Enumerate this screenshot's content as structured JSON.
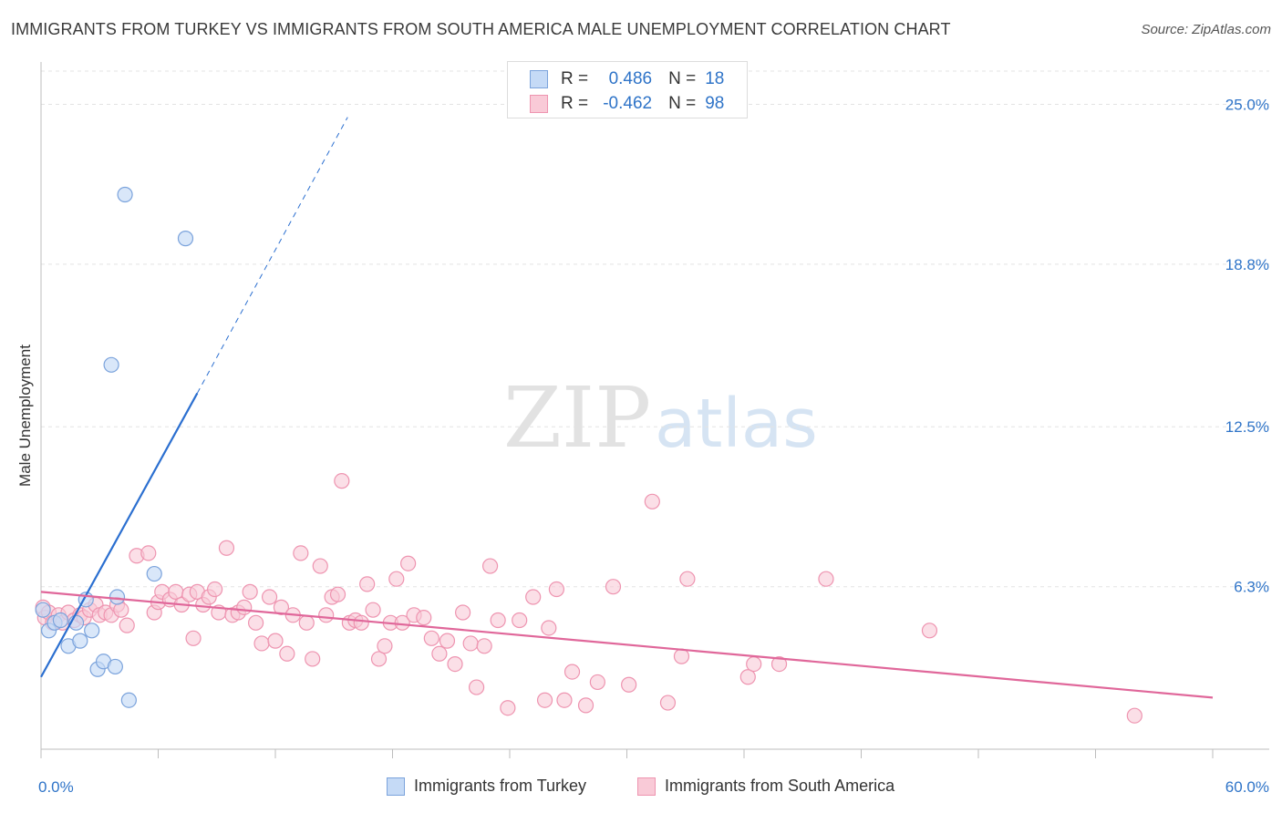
{
  "title": "IMMIGRANTS FROM TURKEY VS IMMIGRANTS FROM SOUTH AMERICA MALE UNEMPLOYMENT CORRELATION CHART",
  "source": "Source: ZipAtlas.com",
  "watermark": {
    "zip": "ZIP",
    "atlas": "atlas"
  },
  "legend": {
    "r_label": "R =",
    "n_label": "N =",
    "rows": [
      {
        "r": "0.486",
        "n": "18"
      },
      {
        "r": "-0.462",
        "n": "98"
      }
    ]
  },
  "colors": {
    "turkey_fill": "#c5daf6",
    "turkey_stroke": "#7ba3dc",
    "turkey_line": "#2b6fd0",
    "sa_fill": "#f9cad7",
    "sa_stroke": "#ee94b0",
    "sa_line": "#e0679a",
    "axis_label": "#2f74c8",
    "grid": "#e3e3e3"
  },
  "chart_data": {
    "type": "scatter",
    "title": "IMMIGRANTS FROM TURKEY VS IMMIGRANTS FROM SOUTH AMERICA MALE UNEMPLOYMENT CORRELATION CHART",
    "xlabel": "",
    "ylabel": "Male Unemployment",
    "xlim": [
      0,
      60
    ],
    "ylim": [
      0,
      26.5
    ],
    "x_tick_labels": [
      "0.0%",
      "60.0%"
    ],
    "y_ticks": [
      6.3,
      12.5,
      18.8,
      25.0
    ],
    "y_tick_labels": [
      "6.3%",
      "12.5%",
      "18.8%",
      "25.0%"
    ],
    "grid": "horizontal dashed",
    "legend_position": "top-center",
    "series": [
      {
        "name": "Immigrants from Turkey",
        "r": 0.486,
        "n": 18,
        "trend": {
          "x0": 0,
          "y0": 2.8,
          "x1": 8,
          "y1": 13.8,
          "dashed_to_x": 15.7,
          "dashed_to_y": 24.5
        },
        "points": [
          [
            0.1,
            5.4
          ],
          [
            0.4,
            4.6
          ],
          [
            0.7,
            4.9
          ],
          [
            1.0,
            5.0
          ],
          [
            1.4,
            4.0
          ],
          [
            1.8,
            4.9
          ],
          [
            2.0,
            4.2
          ],
          [
            2.3,
            5.8
          ],
          [
            2.6,
            4.6
          ],
          [
            2.9,
            3.1
          ],
          [
            3.2,
            3.4
          ],
          [
            3.8,
            3.2
          ],
          [
            3.9,
            5.9
          ],
          [
            4.5,
            1.9
          ],
          [
            4.3,
            21.5
          ],
          [
            5.8,
            6.8
          ],
          [
            7.4,
            19.8
          ],
          [
            3.6,
            14.9
          ]
        ]
      },
      {
        "name": "Immigrants from South America",
        "r": -0.462,
        "n": 98,
        "trend": {
          "x0": 0,
          "y0": 6.1,
          "x1": 60,
          "y1": 2.0
        },
        "points": [
          [
            0.1,
            5.5
          ],
          [
            0.2,
            5.1
          ],
          [
            0.4,
            5.3
          ],
          [
            0.6,
            4.9
          ],
          [
            0.9,
            5.2
          ],
          [
            1.1,
            4.9
          ],
          [
            1.4,
            5.3
          ],
          [
            1.7,
            5.0
          ],
          [
            2.0,
            5.2
          ],
          [
            2.2,
            5.1
          ],
          [
            2.5,
            5.4
          ],
          [
            2.8,
            5.6
          ],
          [
            3.0,
            5.2
          ],
          [
            3.3,
            5.3
          ],
          [
            3.6,
            5.2
          ],
          [
            3.9,
            5.6
          ],
          [
            4.1,
            5.4
          ],
          [
            4.4,
            4.8
          ],
          [
            4.9,
            7.5
          ],
          [
            5.5,
            7.6
          ],
          [
            5.8,
            5.3
          ],
          [
            6.0,
            5.7
          ],
          [
            6.2,
            6.1
          ],
          [
            6.6,
            5.8
          ],
          [
            6.9,
            6.1
          ],
          [
            7.2,
            5.6
          ],
          [
            7.6,
            6.0
          ],
          [
            7.8,
            4.3
          ],
          [
            8.0,
            6.1
          ],
          [
            8.3,
            5.6
          ],
          [
            8.6,
            5.9
          ],
          [
            8.9,
            6.2
          ],
          [
            9.1,
            5.3
          ],
          [
            9.5,
            7.8
          ],
          [
            9.8,
            5.2
          ],
          [
            10.1,
            5.3
          ],
          [
            10.4,
            5.5
          ],
          [
            10.7,
            6.1
          ],
          [
            11.0,
            4.9
          ],
          [
            11.3,
            4.1
          ],
          [
            11.7,
            5.9
          ],
          [
            12.0,
            4.2
          ],
          [
            12.3,
            5.5
          ],
          [
            12.6,
            3.7
          ],
          [
            12.9,
            5.2
          ],
          [
            13.3,
            7.6
          ],
          [
            13.6,
            4.9
          ],
          [
            13.9,
            3.5
          ],
          [
            14.3,
            7.1
          ],
          [
            14.6,
            5.2
          ],
          [
            14.9,
            5.9
          ],
          [
            15.2,
            6.0
          ],
          [
            15.4,
            10.4
          ],
          [
            15.8,
            4.9
          ],
          [
            16.1,
            5.0
          ],
          [
            16.4,
            4.9
          ],
          [
            16.7,
            6.4
          ],
          [
            17.0,
            5.4
          ],
          [
            17.3,
            3.5
          ],
          [
            17.6,
            4.0
          ],
          [
            17.9,
            4.9
          ],
          [
            18.2,
            6.6
          ],
          [
            18.5,
            4.9
          ],
          [
            18.8,
            7.2
          ],
          [
            19.1,
            5.2
          ],
          [
            19.6,
            5.1
          ],
          [
            20.0,
            4.3
          ],
          [
            20.4,
            3.7
          ],
          [
            20.8,
            4.2
          ],
          [
            21.2,
            3.3
          ],
          [
            21.6,
            5.3
          ],
          [
            22.0,
            4.1
          ],
          [
            22.3,
            2.4
          ],
          [
            22.7,
            4.0
          ],
          [
            23.0,
            7.1
          ],
          [
            23.4,
            5.0
          ],
          [
            23.9,
            1.6
          ],
          [
            24.5,
            5.0
          ],
          [
            25.2,
            5.9
          ],
          [
            25.8,
            1.9
          ],
          [
            26.0,
            4.7
          ],
          [
            26.4,
            6.2
          ],
          [
            26.8,
            1.9
          ],
          [
            27.2,
            3.0
          ],
          [
            27.9,
            1.7
          ],
          [
            28.5,
            2.6
          ],
          [
            29.3,
            6.3
          ],
          [
            30.1,
            2.5
          ],
          [
            31.3,
            9.6
          ],
          [
            32.1,
            1.8
          ],
          [
            32.8,
            3.6
          ],
          [
            33.1,
            6.6
          ],
          [
            36.2,
            2.8
          ],
          [
            36.5,
            3.3
          ],
          [
            37.8,
            3.3
          ],
          [
            40.2,
            6.6
          ],
          [
            45.5,
            4.6
          ],
          [
            56.0,
            1.3
          ]
        ]
      }
    ]
  },
  "bottom_legend": [
    "Immigrants from Turkey",
    "Immigrants from South America"
  ]
}
